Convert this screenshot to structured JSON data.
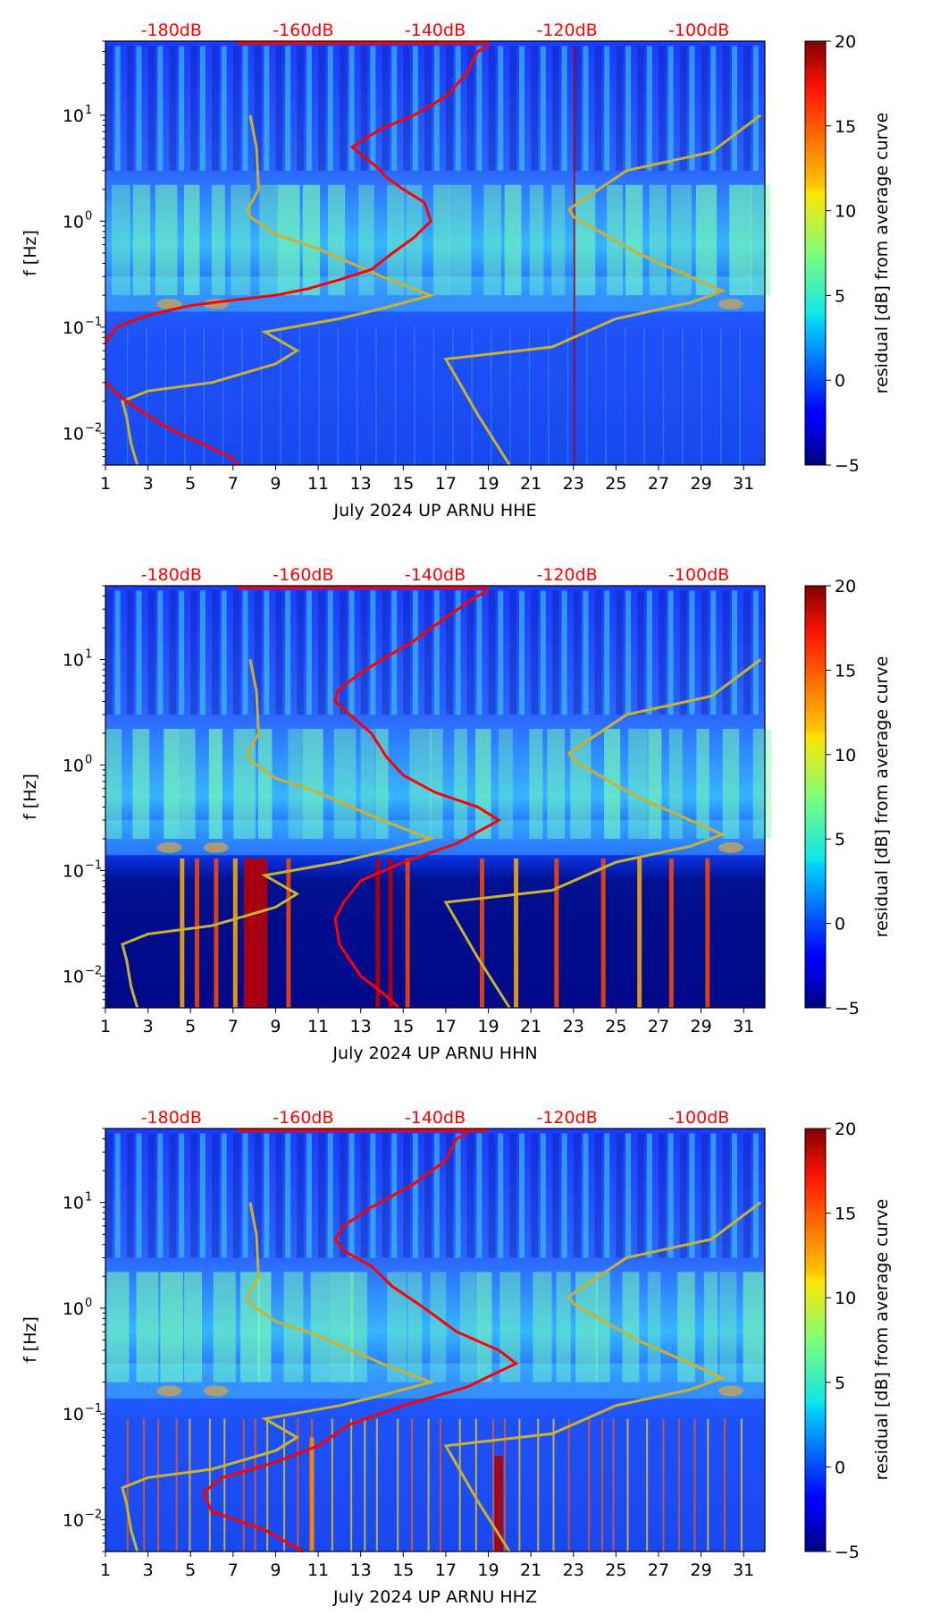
{
  "figure_title": "",
  "colors": {
    "psd_median_curve": "#ff0000",
    "noise_model_curves": "#c8b232",
    "db_scale_labels": "#ff0000",
    "colormap": "jet"
  },
  "chart_data": [
    {
      "type": "heatmap",
      "title": "",
      "xlabel": "July 2024 UP ARNU  HHE",
      "ylabel": "f [Hz]",
      "xlim": [
        1,
        32
      ],
      "ylim": [
        0.005,
        50
      ],
      "yscale": "log",
      "x_ticks": [
        "1",
        "3",
        "5",
        "7",
        "9",
        "11",
        "13",
        "15",
        "17",
        "19",
        "21",
        "23",
        "25",
        "27",
        "29",
        "31"
      ],
      "y_ticks": [
        {
          "value": 0.01,
          "label_base": "10",
          "label_exp": "−2"
        },
        {
          "value": 0.1,
          "label_base": "10",
          "label_exp": "−1"
        },
        {
          "value": 1,
          "label_base": "10",
          "label_exp": "0"
        },
        {
          "value": 10,
          "label_base": "10",
          "label_exp": "1"
        }
      ],
      "db_scale_labels": [
        "-180dB",
        "-160dB",
        "-140dB",
        "-120dB",
        "-100dB"
      ],
      "db_scale_range": [
        -190,
        -90
      ],
      "colorbar": {
        "label": "residual [dB] from average curve",
        "min": -5,
        "max": 20,
        "ticks": [
          "−5",
          "0",
          "5",
          "10",
          "15",
          "20"
        ]
      },
      "psd_curve": {
        "name": "median PSD",
        "points": [
          [
            1,
            0.03
          ],
          [
            1.7,
            0.022
          ],
          [
            2.7,
            0.016
          ],
          [
            4,
            0.011
          ],
          [
            5.5,
            0.008
          ],
          [
            7,
            0.0058
          ],
          [
            7.2,
            0.005
          ]
        ],
        "points_upper": [
          [
            1,
            0.07
          ],
          [
            1.5,
            0.1
          ],
          [
            3,
            0.13
          ],
          [
            5,
            0.16
          ],
          [
            7,
            0.18
          ],
          [
            9,
            0.2
          ],
          [
            10.5,
            0.23
          ],
          [
            12,
            0.28
          ],
          [
            13.5,
            0.35
          ],
          [
            14.5,
            0.5
          ],
          [
            15.5,
            0.7
          ],
          [
            16.3,
            1.0
          ],
          [
            16,
            1.5
          ],
          [
            15,
            2.0
          ],
          [
            14.2,
            2.6
          ],
          [
            13.8,
            3.2
          ],
          [
            13.2,
            4.0
          ],
          [
            12.6,
            5
          ],
          [
            13.2,
            6
          ],
          [
            14,
            7.5
          ],
          [
            15.5,
            10
          ],
          [
            17,
            15
          ],
          [
            18,
            25
          ],
          [
            18.5,
            40
          ],
          [
            19,
            45
          ]
        ]
      },
      "noise_models": {
        "low_model": [
          [
            2.5,
            0.005
          ],
          [
            2.2,
            0.008
          ],
          [
            2.0,
            0.014
          ],
          [
            1.8,
            0.02
          ],
          [
            3,
            0.025
          ],
          [
            6,
            0.03
          ],
          [
            9,
            0.045
          ],
          [
            10,
            0.06
          ],
          [
            8.5,
            0.09
          ],
          [
            12,
            0.12
          ],
          [
            14,
            0.15
          ],
          [
            16.3,
            0.2
          ],
          [
            14,
            0.3
          ],
          [
            11,
            0.55
          ],
          [
            9,
            0.75
          ],
          [
            7.8,
            1.1
          ],
          [
            7.7,
            1.3
          ],
          [
            8.2,
            2
          ],
          [
            8.1,
            5
          ],
          [
            7.8,
            10
          ]
        ],
        "high_model": [
          [
            20,
            0.005
          ],
          [
            18.5,
            0.015
          ],
          [
            17,
            0.05
          ],
          [
            22,
            0.065
          ],
          [
            25,
            0.12
          ],
          [
            28.5,
            0.17
          ],
          [
            30,
            0.22
          ],
          [
            26,
            0.5
          ],
          [
            23,
            1.1
          ],
          [
            22.8,
            1.3
          ],
          [
            25.5,
            3
          ],
          [
            29.5,
            4.5
          ],
          [
            31.8,
            10
          ]
        ]
      }
    },
    {
      "type": "heatmap",
      "title": "",
      "xlabel": "July 2024 UP ARNU  HHN",
      "ylabel": "f [Hz]",
      "xlim": [
        1,
        32
      ],
      "ylim": [
        0.005,
        50
      ],
      "yscale": "log",
      "x_ticks": [
        "1",
        "3",
        "5",
        "7",
        "9",
        "11",
        "13",
        "15",
        "17",
        "19",
        "21",
        "23",
        "25",
        "27",
        "29",
        "31"
      ],
      "y_ticks": [
        {
          "value": 0.01,
          "label_base": "10",
          "label_exp": "−2"
        },
        {
          "value": 0.1,
          "label_base": "10",
          "label_exp": "−1"
        },
        {
          "value": 1,
          "label_base": "10",
          "label_exp": "0"
        },
        {
          "value": 10,
          "label_base": "10",
          "label_exp": "1"
        }
      ],
      "db_scale_labels": [
        "-180dB",
        "-160dB",
        "-140dB",
        "-120dB",
        "-100dB"
      ],
      "db_scale_range": [
        -190,
        -90
      ],
      "colorbar": {
        "label": "residual [dB] from average curve",
        "min": -5,
        "max": 20,
        "ticks": [
          "−5",
          "0",
          "5",
          "10",
          "15",
          "20"
        ]
      },
      "psd_curve": {
        "name": "median PSD",
        "points": [
          [
            14.8,
            0.005
          ],
          [
            14,
            0.007
          ],
          [
            13,
            0.01
          ],
          [
            12,
            0.02
          ],
          [
            11.8,
            0.035
          ],
          [
            12.2,
            0.05
          ],
          [
            13,
            0.08
          ],
          [
            15,
            0.12
          ],
          [
            17.5,
            0.18
          ],
          [
            19.5,
            0.3
          ],
          [
            18.5,
            0.4
          ],
          [
            16.5,
            0.55
          ],
          [
            15,
            0.8
          ],
          [
            14.2,
            1.2
          ],
          [
            13.5,
            2
          ],
          [
            12.5,
            3
          ],
          [
            11.8,
            4
          ],
          [
            11.9,
            5
          ],
          [
            12.8,
            7
          ],
          [
            14,
            10
          ],
          [
            15.5,
            15
          ],
          [
            17,
            25
          ],
          [
            18.5,
            40
          ],
          [
            19,
            45
          ]
        ]
      },
      "noise_models": {
        "low_model": [
          [
            2.5,
            0.005
          ],
          [
            2.2,
            0.008
          ],
          [
            2.0,
            0.014
          ],
          [
            1.8,
            0.02
          ],
          [
            3,
            0.025
          ],
          [
            6,
            0.03
          ],
          [
            9,
            0.045
          ],
          [
            10,
            0.06
          ],
          [
            8.5,
            0.09
          ],
          [
            12,
            0.12
          ],
          [
            14,
            0.15
          ],
          [
            16.3,
            0.2
          ],
          [
            14,
            0.3
          ],
          [
            11,
            0.55
          ],
          [
            9,
            0.75
          ],
          [
            7.8,
            1.1
          ],
          [
            7.7,
            1.3
          ],
          [
            8.2,
            2
          ],
          [
            8.1,
            5
          ],
          [
            7.8,
            10
          ]
        ],
        "high_model": [
          [
            20,
            0.005
          ],
          [
            18.5,
            0.015
          ],
          [
            17,
            0.05
          ],
          [
            22,
            0.065
          ],
          [
            25,
            0.12
          ],
          [
            28.5,
            0.17
          ],
          [
            30,
            0.22
          ],
          [
            26,
            0.5
          ],
          [
            23,
            1.1
          ],
          [
            22.8,
            1.3
          ],
          [
            25.5,
            3
          ],
          [
            29.5,
            4.5
          ],
          [
            31.8,
            10
          ]
        ]
      }
    },
    {
      "type": "heatmap",
      "title": "",
      "xlabel": "July 2024 UP ARNU  HHZ",
      "ylabel": "f [Hz]",
      "xlim": [
        1,
        32
      ],
      "ylim": [
        0.005,
        50
      ],
      "yscale": "log",
      "x_ticks": [
        "1",
        "3",
        "5",
        "7",
        "9",
        "11",
        "13",
        "15",
        "17",
        "19",
        "21",
        "23",
        "25",
        "27",
        "29",
        "31"
      ],
      "y_ticks": [
        {
          "value": 0.01,
          "label_base": "10",
          "label_exp": "−2"
        },
        {
          "value": 0.1,
          "label_base": "10",
          "label_exp": "−1"
        },
        {
          "value": 1,
          "label_base": "10",
          "label_exp": "0"
        },
        {
          "value": 10,
          "label_base": "10",
          "label_exp": "1"
        }
      ],
      "db_scale_labels": [
        "-180dB",
        "-160dB",
        "-140dB",
        "-120dB",
        "-100dB"
      ],
      "db_scale_range": [
        -190,
        -90
      ],
      "colorbar": {
        "label": "residual [dB] from average curve",
        "min": -5,
        "max": 20,
        "ticks": [
          "−5",
          "0",
          "5",
          "10",
          "15",
          "20"
        ]
      },
      "psd_curve": {
        "name": "median PSD",
        "points": [
          [
            10.3,
            0.005
          ],
          [
            8.5,
            0.008
          ],
          [
            6,
            0.012
          ],
          [
            5.6,
            0.018
          ],
          [
            6.5,
            0.025
          ],
          [
            9,
            0.035
          ],
          [
            11,
            0.05
          ],
          [
            12.5,
            0.08
          ],
          [
            15,
            0.12
          ],
          [
            18,
            0.18
          ],
          [
            20.3,
            0.3
          ],
          [
            19.5,
            0.4
          ],
          [
            17.5,
            0.6
          ],
          [
            16,
            1.0
          ],
          [
            14.5,
            1.6
          ],
          [
            13.5,
            2.5
          ],
          [
            12.2,
            3.5
          ],
          [
            11.8,
            4.5
          ],
          [
            12.2,
            6
          ],
          [
            13.5,
            9
          ],
          [
            15.5,
            15
          ],
          [
            17,
            25
          ],
          [
            17.5,
            40
          ],
          [
            18,
            45
          ]
        ]
      },
      "noise_models": {
        "low_model": [
          [
            2.5,
            0.005
          ],
          [
            2.2,
            0.008
          ],
          [
            2.0,
            0.014
          ],
          [
            1.8,
            0.02
          ],
          [
            3,
            0.025
          ],
          [
            6,
            0.03
          ],
          [
            9,
            0.045
          ],
          [
            10,
            0.06
          ],
          [
            8.5,
            0.09
          ],
          [
            12,
            0.12
          ],
          [
            14,
            0.15
          ],
          [
            16.3,
            0.2
          ],
          [
            14,
            0.3
          ],
          [
            11,
            0.55
          ],
          [
            9,
            0.75
          ],
          [
            7.8,
            1.1
          ],
          [
            7.7,
            1.3
          ],
          [
            8.2,
            2
          ],
          [
            8.1,
            5
          ],
          [
            7.8,
            10
          ]
        ],
        "high_model": [
          [
            20,
            0.005
          ],
          [
            18.5,
            0.015
          ],
          [
            17,
            0.05
          ],
          [
            22,
            0.065
          ],
          [
            25,
            0.12
          ],
          [
            28.5,
            0.17
          ],
          [
            30,
            0.22
          ],
          [
            26,
            0.5
          ],
          [
            23,
            1.1
          ],
          [
            22.8,
            1.3
          ],
          [
            25.5,
            3
          ],
          [
            29.5,
            4.5
          ],
          [
            31.8,
            10
          ]
        ]
      }
    }
  ]
}
